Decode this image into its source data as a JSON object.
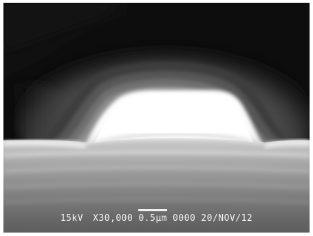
{
  "micrograph": {
    "voltage": "15kV",
    "magnification": "X30,000",
    "scale_label": "0.5µm",
    "image_number": "0000",
    "date": "20/NOV/12"
  }
}
